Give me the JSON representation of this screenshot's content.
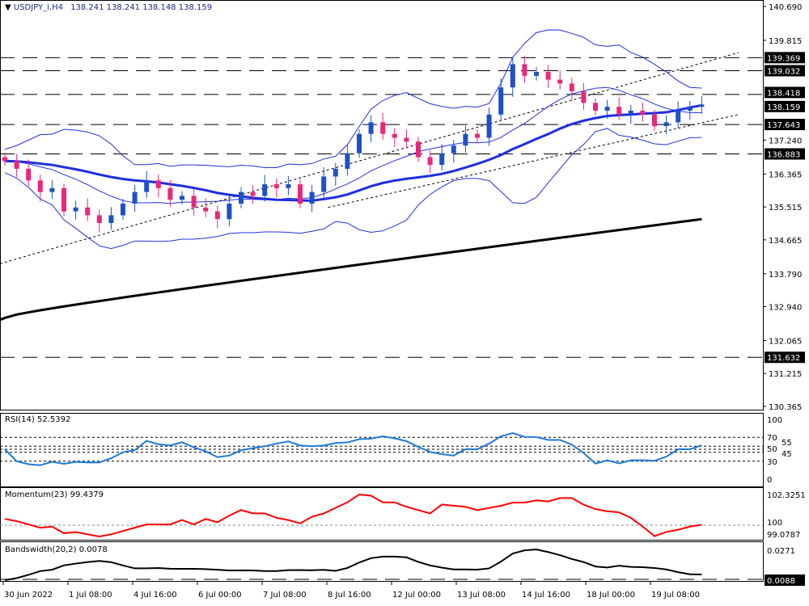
{
  "header": {
    "symbol": "USDJPY_i,H4",
    "ohlc": "138.241 138.241 138.148 138.159"
  },
  "price_axis": {
    "ticks": [
      "140.690",
      "139.815",
      "137.240",
      "136.365",
      "135.515",
      "134.665",
      "133.790",
      "132.940",
      "132.065",
      "131.215",
      "130.365"
    ],
    "tick_values": [
      140.69,
      139.815,
      137.24,
      136.365,
      135.515,
      134.665,
      133.79,
      132.94,
      132.065,
      131.215,
      130.365
    ]
  },
  "levels": [
    {
      "value": 139.369,
      "label": "139.369"
    },
    {
      "value": 139.032,
      "label": "139.032"
    },
    {
      "value": 138.418,
      "label": "138.418"
    },
    {
      "value": 137.643,
      "label": "137.643"
    },
    {
      "value": 136.883,
      "label": "136.883"
    },
    {
      "value": 131.632,
      "label": "131.632"
    }
  ],
  "current_price": {
    "value": 138.159,
    "label": "138.159"
  },
  "time_axis": [
    "30 Jun 2022",
    "1 Jul 08:00",
    "4 Jul 16:00",
    "6 Jul 00:00",
    "7 Jul 08:00",
    "8 Jul 16:00",
    "12 Jul 00:00",
    "13 Jul 08:00",
    "14 Jul 16:00",
    "18 Jul 00:00",
    "19 Jul 08:00"
  ],
  "rsi": {
    "title": "RSI(14) 52.5392",
    "ticks": [
      "100",
      "70",
      "55",
      "50",
      "45",
      "30",
      "0"
    ],
    "tick_values": [
      100,
      70,
      55,
      50,
      45,
      30,
      0
    ]
  },
  "momentum": {
    "title": "Momentum(23) 99.4379",
    "ticks": [
      "102.3251",
      "100",
      "99.0787"
    ]
  },
  "bandwidth": {
    "title": "Bandswidth(20,2) 0.0078",
    "ticks": [
      "0.0271"
    ],
    "current": "0.0088"
  },
  "colors": {
    "bull": "#1e50c8",
    "bear": "#e8287a",
    "ma": "#1e2ee0",
    "bb": "#2030e0",
    "ma200": "#000000",
    "rsi": "#1e7ad8",
    "momentum": "#ff0000",
    "bandwidth": "#000000"
  },
  "chart_data": {
    "type": "candlestick",
    "symbol": "USDJPY_i",
    "timeframe": "H4",
    "close": [
      136.7,
      136.5,
      136.2,
      135.9,
      136.0,
      135.4,
      135.5,
      135.3,
      135.1,
      135.3,
      135.6,
      135.9,
      136.2,
      136.0,
      135.7,
      135.8,
      135.5,
      135.4,
      135.2,
      135.6,
      135.9,
      135.8,
      136.1,
      136.0,
      136.1,
      135.6,
      135.9,
      136.3,
      136.5,
      136.9,
      137.4,
      137.7,
      137.4,
      137.3,
      137.2,
      136.8,
      136.6,
      136.9,
      137.1,
      137.4,
      137.3,
      137.9,
      138.6,
      139.2,
      138.9,
      139.0,
      138.8,
      138.7,
      138.5,
      138.2,
      138.0,
      138.1,
      137.9,
      138.0,
      137.9,
      137.6,
      137.7,
      138.0,
      138.1,
      138.159
    ],
    "ma200": [
      132.65,
      135.2
    ],
    "trendlines": [
      [
        [
          0,
          134.05
        ],
        [
          1,
          139.5
        ]
      ],
      [
        [
          0.43,
          135.5
        ],
        [
          1,
          137.9
        ]
      ]
    ]
  }
}
